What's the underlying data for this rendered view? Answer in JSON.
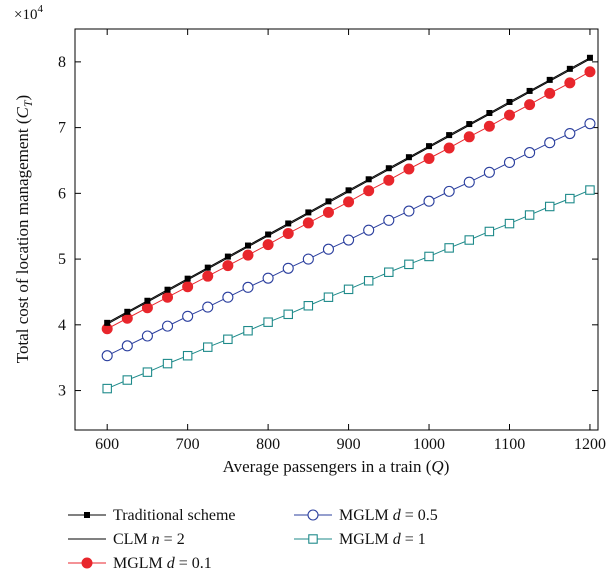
{
  "chart_data": {
    "type": "line",
    "xlabel": "Average passengers in a train (",
    "xlabel_var": "Q",
    "xlabel_end": ")",
    "ylabel": "Total cost of location management (",
    "ylabel_var": "C",
    "ylabel_sub": "T",
    "ylabel_end": ")",
    "y_multiplier": "×10",
    "y_multiplier_exp": "4",
    "xlim": [
      560,
      1210
    ],
    "ylim": [
      2.4,
      8.5
    ],
    "xticks": [
      "600",
      "700",
      "800",
      "900",
      "1000",
      "1100",
      "1200"
    ],
    "yticks": [
      "3",
      "4",
      "5",
      "6",
      "7",
      "8"
    ],
    "x": [
      600,
      625,
      650,
      675,
      700,
      725,
      750,
      775,
      800,
      825,
      850,
      875,
      900,
      925,
      950,
      975,
      1000,
      1025,
      1050,
      1075,
      1100,
      1125,
      1150,
      1175,
      1200
    ],
    "series": [
      {
        "name": "Traditional scheme",
        "legend_parts": [
          "Traditional scheme"
        ],
        "color": "#000000",
        "marker": "square-filled",
        "values": [
          4.03,
          4.198,
          4.366,
          4.534,
          4.702,
          4.87,
          5.038,
          5.206,
          5.374,
          5.542,
          5.71,
          5.878,
          6.046,
          6.214,
          6.382,
          6.55,
          6.718,
          6.886,
          7.054,
          7.222,
          7.39,
          7.558,
          7.726,
          7.894,
          8.062
        ]
      },
      {
        "name": "CLM n = 2",
        "legend_parts": [
          "CLM ",
          "n",
          " = 2"
        ],
        "color": "#000000",
        "marker": "none",
        "values": [
          4.01,
          4.178,
          4.346,
          4.514,
          4.682,
          4.85,
          5.018,
          5.186,
          5.354,
          5.522,
          5.69,
          5.858,
          6.026,
          6.194,
          6.362,
          6.53,
          6.698,
          6.866,
          7.034,
          7.202,
          7.37,
          7.538,
          7.706,
          7.874,
          8.042
        ]
      },
      {
        "name": "MGLM d = 0.1",
        "legend_parts": [
          "MGLM ",
          "d",
          " = 0.1"
        ],
        "color": "#e8262c",
        "marker": "circle-filled",
        "values": [
          3.94,
          4.1,
          4.26,
          4.42,
          4.58,
          4.74,
          4.9,
          5.06,
          5.22,
          5.39,
          5.55,
          5.71,
          5.87,
          6.04,
          6.2,
          6.37,
          6.53,
          6.69,
          6.86,
          7.02,
          7.19,
          7.35,
          7.52,
          7.68,
          7.85
        ]
      },
      {
        "name": "MGLM d = 0.5",
        "legend_parts": [
          "MGLM ",
          "d",
          " = 0.5"
        ],
        "color": "#2b3f9e",
        "marker": "circle-open",
        "values": [
          3.53,
          3.68,
          3.83,
          3.98,
          4.13,
          4.27,
          4.42,
          4.57,
          4.71,
          4.86,
          5.0,
          5.15,
          5.29,
          5.44,
          5.59,
          5.73,
          5.88,
          6.03,
          6.17,
          6.32,
          6.47,
          6.62,
          6.77,
          6.91,
          7.06
        ]
      },
      {
        "name": "MGLM d = 1",
        "legend_parts": [
          "MGLM ",
          "d",
          " = 1"
        ],
        "color": "#1e8a8a",
        "marker": "square-open",
        "values": [
          3.03,
          3.16,
          3.28,
          3.41,
          3.53,
          3.66,
          3.78,
          3.91,
          4.04,
          4.16,
          4.29,
          4.42,
          4.54,
          4.67,
          4.8,
          4.92,
          5.04,
          5.17,
          5.29,
          5.42,
          5.54,
          5.67,
          5.8,
          5.92,
          6.05
        ]
      }
    ]
  }
}
